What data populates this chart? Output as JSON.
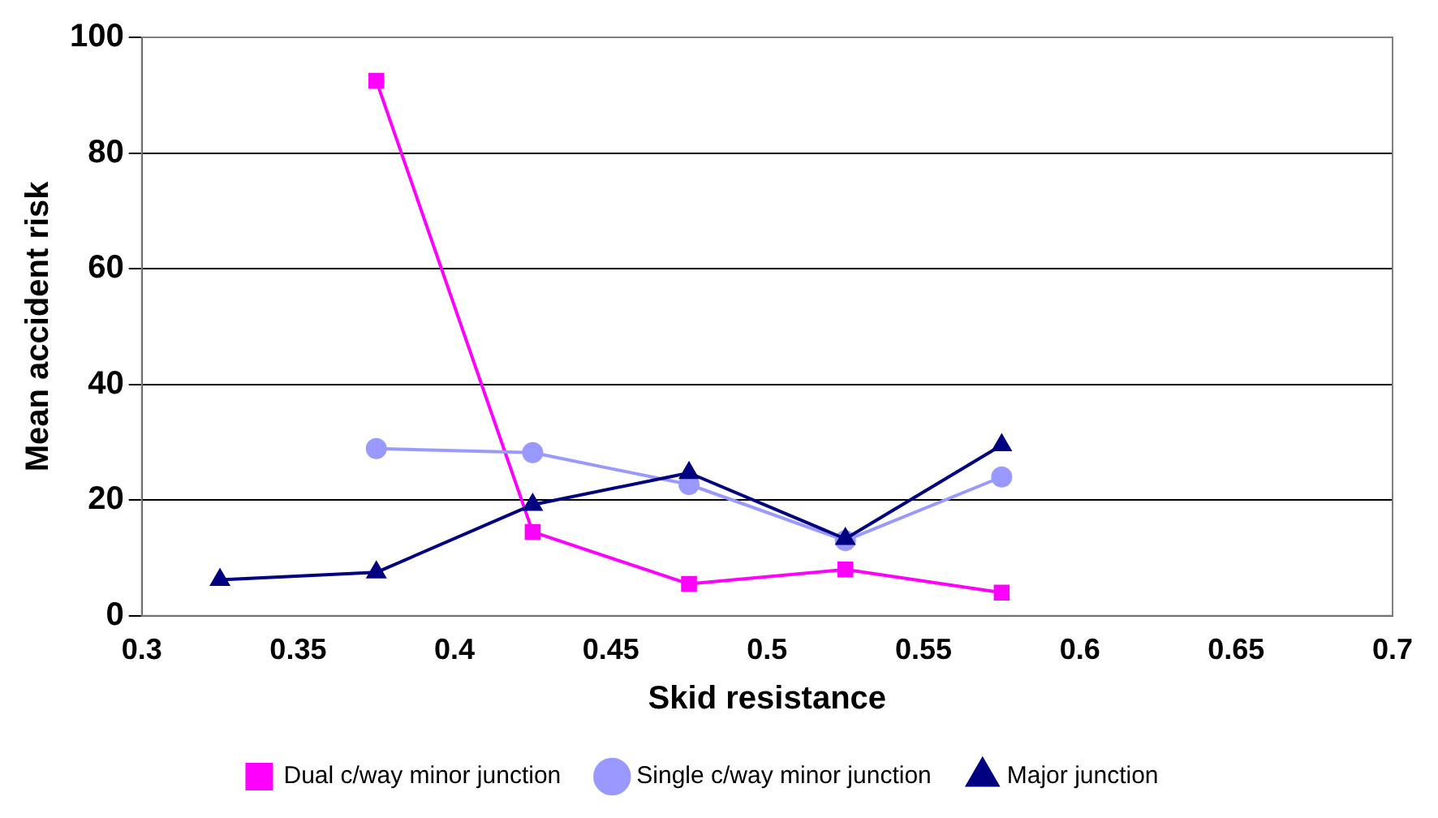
{
  "chart_data": {
    "type": "line",
    "xlabel": "Skid resistance",
    "ylabel": "Mean accident risk",
    "xlim": [
      0.3,
      0.7
    ],
    "xticks": [
      0.3,
      0.35,
      0.4,
      0.45,
      0.5,
      0.55,
      0.6,
      0.65,
      0.7
    ],
    "ylim": [
      0,
      100
    ],
    "yticks": [
      0,
      20,
      40,
      60,
      80,
      100
    ],
    "grid": "y",
    "legend": "bottom",
    "line_style": "solid",
    "series": [
      {
        "name": "Dual c/way minor junction",
        "color": "#ff00ff",
        "marker": "square",
        "x": [
          0.375,
          0.425,
          0.475,
          0.525,
          0.575
        ],
        "values": [
          92.5,
          14.5,
          5.5,
          8,
          4
        ]
      },
      {
        "name": "Single c/way minor junction",
        "color": "#9999ff",
        "marker": "circle",
        "x": [
          0.375,
          0.425,
          0.475,
          0.525,
          0.575
        ],
        "values": [
          28.9,
          28.2,
          22.7,
          13,
          24
        ]
      },
      {
        "name": "Major junction",
        "color": "#000080",
        "marker": "triangle",
        "x": [
          0.325,
          0.375,
          0.425,
          0.475,
          0.525,
          0.575
        ],
        "values": [
          6.2,
          7.5,
          19.2,
          24.7,
          13.3,
          29.5
        ]
      }
    ]
  }
}
